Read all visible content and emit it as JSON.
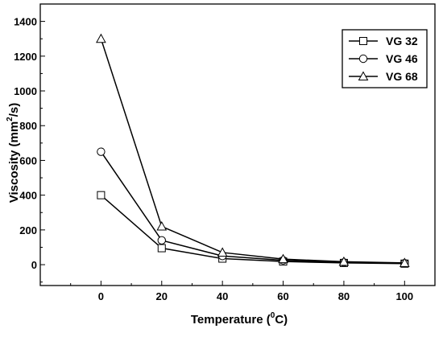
{
  "chart_data": {
    "type": "line",
    "x": [
      0,
      20,
      40,
      60,
      80,
      100
    ],
    "xlim": [
      -20,
      110
    ],
    "ylim": [
      -120,
      1500
    ],
    "x_ticks": [
      0,
      20,
      40,
      60,
      80,
      100
    ],
    "y_ticks": [
      0,
      200,
      400,
      600,
      800,
      1000,
      1200,
      1400
    ],
    "xlabel": "Temperature (",
    "xlabel_sup": "0",
    "xlabel_unit": "C)",
    "ylabel": "Viscosity (mm",
    "ylabel_sup": "2",
    "ylabel_unit": "/s)",
    "legend_position": "top-right",
    "grid": false,
    "series": [
      {
        "name": "VG 32",
        "marker": "square",
        "values": [
          400,
          95,
          35,
          18,
          10,
          6
        ]
      },
      {
        "name": "VG 46",
        "marker": "circle",
        "values": [
          650,
          140,
          50,
          25,
          13,
          8
        ]
      },
      {
        "name": "VG 68",
        "marker": "triangle",
        "values": [
          1300,
          220,
          70,
          32,
          17,
          10
        ]
      }
    ],
    "colors": {
      "line": "#000000",
      "marker_fill": "#ffffff"
    }
  }
}
